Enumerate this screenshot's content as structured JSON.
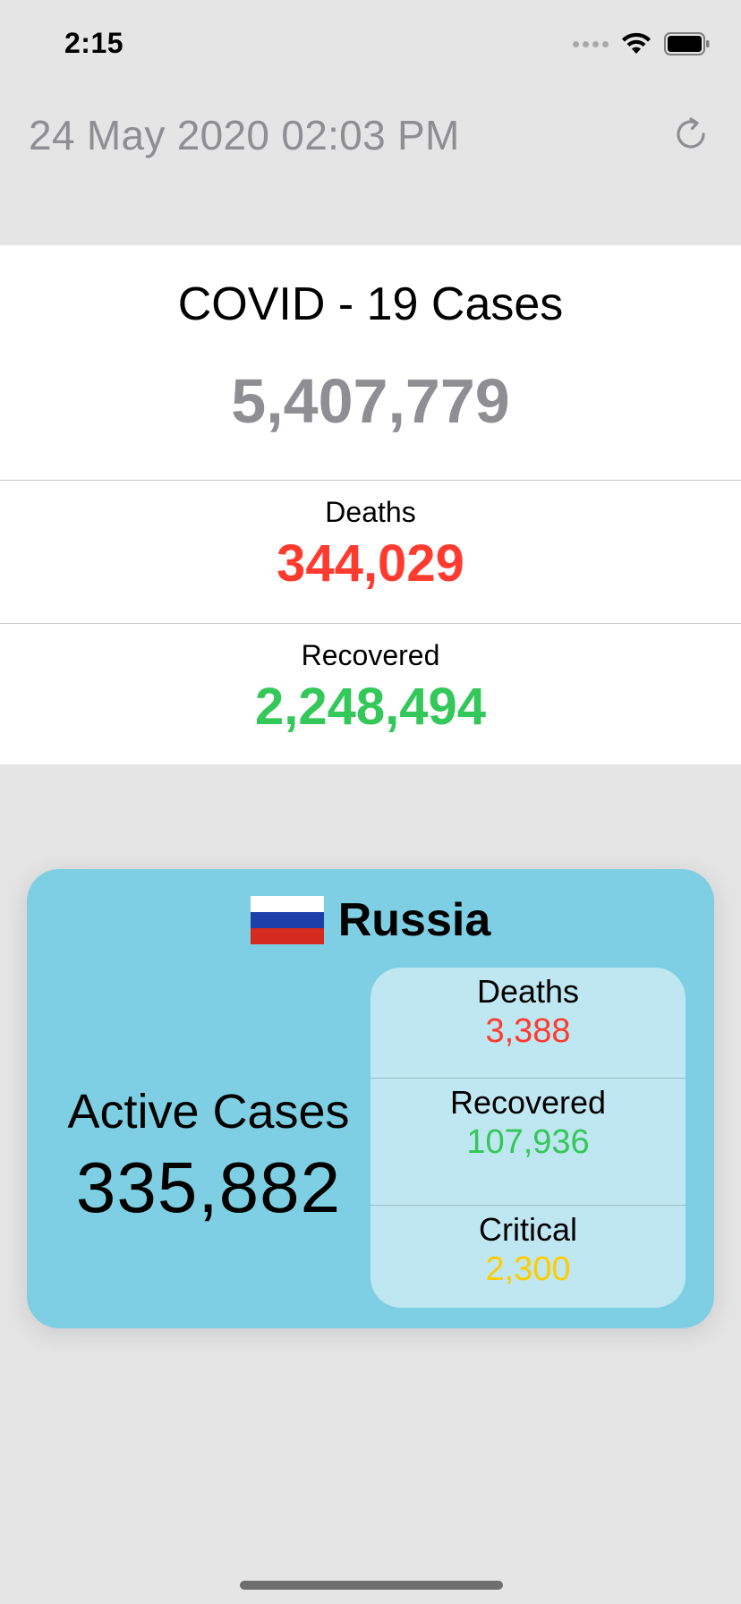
{
  "status_bar": {
    "time": "2:15"
  },
  "header": {
    "date": "24 May 2020 02:03 PM",
    "refresh_icon": "refresh-icon"
  },
  "global": {
    "title": "COVID - 19 Cases",
    "total": "5,407,779",
    "deaths_label": "Deaths",
    "deaths_value": "344,029",
    "recovered_label": "Recovered",
    "recovered_value": "2,248,494"
  },
  "country": {
    "name": "Russia",
    "flag_icon": "russia-flag-icon",
    "active_label": "Active Cases",
    "active_value": "335,882",
    "stats": [
      {
        "label": "Deaths",
        "value": "3,388"
      },
      {
        "label": "Recovered",
        "value": "107,936"
      },
      {
        "label": "Critical",
        "value": "2,300"
      }
    ]
  },
  "colors": {
    "deaths": "#ff3b30",
    "recovered": "#34c759",
    "critical": "#ffcc00",
    "muted": "#8e8e93",
    "card": "#7ecfe3"
  }
}
